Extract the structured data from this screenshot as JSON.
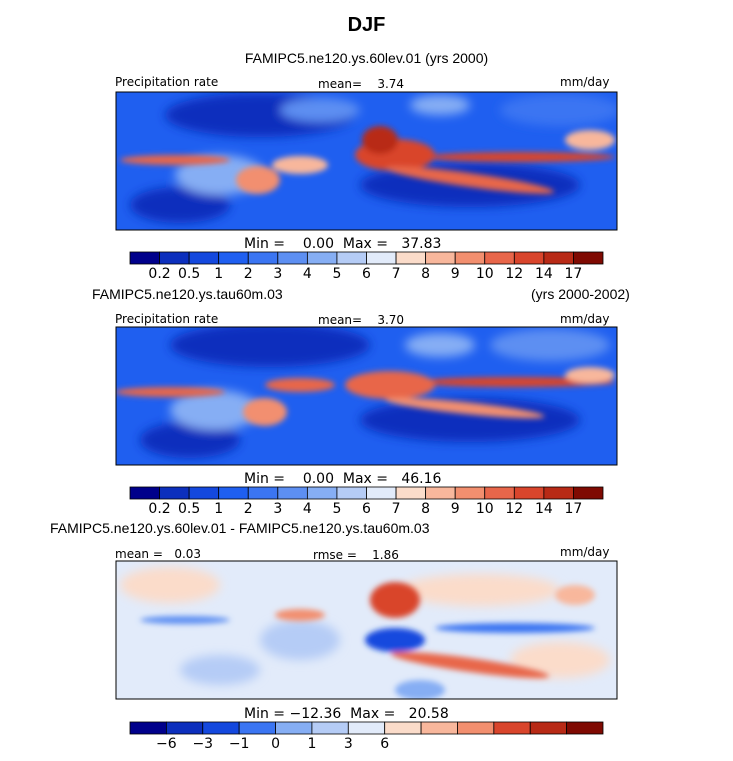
{
  "title": "DJF",
  "panels": [
    {
      "heading": "FAMIPC5.ne120.ys.60lev.01 (yrs 2000)",
      "heading_right": "",
      "left_label": "Precipitation rate",
      "center_label": "mean=    3.74",
      "right_label": "mm/day",
      "minmax": "Min =    0.00  Max =   37.83",
      "colorbar_ticks": [
        "0.2",
        "0.5",
        "1",
        "2",
        "3",
        "4",
        "5",
        "6",
        "7",
        "8",
        "9",
        "10",
        "12",
        "14",
        "17"
      ]
    },
    {
      "heading": "FAMIPC5.ne120.ys.tau60m.03",
      "heading_right": "(yrs 2000-2002)",
      "left_label": "Precipitation rate",
      "center_label": "mean=    3.70",
      "right_label": "mm/day",
      "minmax": "Min =    0.00  Max =   46.16",
      "colorbar_ticks": [
        "0.2",
        "0.5",
        "1",
        "2",
        "3",
        "4",
        "5",
        "6",
        "7",
        "8",
        "9",
        "10",
        "12",
        "14",
        "17"
      ]
    },
    {
      "heading": "FAMIPC5.ne120.ys.60lev.01 - FAMIPC5.ne120.ys.tau60m.03",
      "heading_right": "",
      "left_label": "mean =   0.03",
      "center_label": "rmse =    1.86",
      "right_label": "mm/day",
      "minmax": "Min = −12.36  Max =   20.58",
      "colorbar_ticks": [
        "−6",
        "−3",
        "−1",
        "0",
        "1",
        "3",
        "6"
      ]
    }
  ],
  "colors": {
    "precip_scale": [
      "#00008b",
      "#0c2fbd",
      "#1448de",
      "#1f5ff0",
      "#3b75f2",
      "#5d8ff2",
      "#86aef4",
      "#b5ccf6",
      "#e2ebfa",
      "#fbdcca",
      "#f8b79c",
      "#f28f6f",
      "#e8664a",
      "#d9452c",
      "#b82a16",
      "#7f0a02"
    ],
    "diff_scale": [
      "#00008b",
      "#0c2fbd",
      "#1448de",
      "#3b75f2",
      "#86aef4",
      "#b5ccf6",
      "#e2ebfa",
      "#fbdcca",
      "#f8b79c",
      "#f28f6f",
      "#d9452c",
      "#b82a16",
      "#7f0a02"
    ]
  },
  "chart_data": [
    {
      "type": "heatmap",
      "title": "FAMIPC5.ne120.ys.60lev.01 (yrs 2000)",
      "variable": "Precipitation rate",
      "units": "mm/day",
      "mean": 3.74,
      "min": 0.0,
      "max": 37.83,
      "contour_levels": [
        0.2,
        0.5,
        1,
        2,
        3,
        4,
        5,
        6,
        7,
        8,
        9,
        10,
        12,
        14,
        17
      ]
    },
    {
      "type": "heatmap",
      "title": "FAMIPC5.ne120.ys.tau60m.03 (yrs 2000-2002)",
      "variable": "Precipitation rate",
      "units": "mm/day",
      "mean": 3.7,
      "min": 0.0,
      "max": 46.16,
      "contour_levels": [
        0.2,
        0.5,
        1,
        2,
        3,
        4,
        5,
        6,
        7,
        8,
        9,
        10,
        12,
        14,
        17
      ]
    },
    {
      "type": "heatmap",
      "title": "FAMIPC5.ne120.ys.60lev.01 - FAMIPC5.ne120.ys.tau60m.03",
      "units": "mm/day",
      "mean": 0.03,
      "rmse": 1.86,
      "min": -12.36,
      "max": 20.58,
      "contour_levels": [
        -6,
        -3,
        -1,
        0,
        1,
        3,
        6
      ]
    }
  ]
}
